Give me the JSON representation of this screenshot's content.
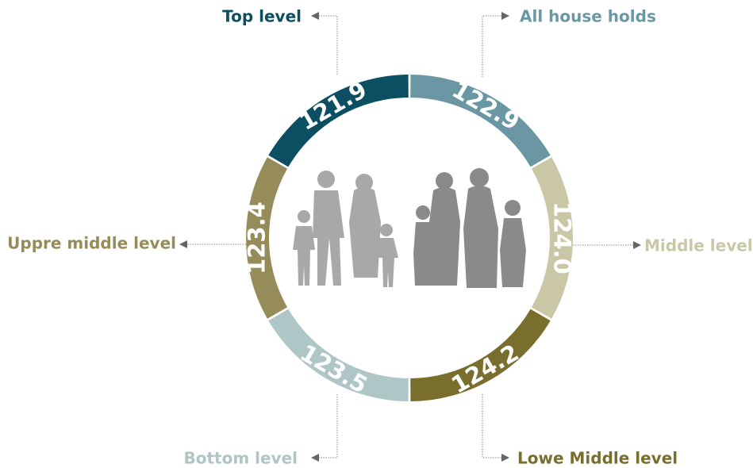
{
  "segments": [
    {
      "label": "All house holds",
      "value": "122.9",
      "color": "#6b97a5"
    },
    {
      "label": "Middle level",
      "value": "124.0",
      "color": "#c9c7a6"
    },
    {
      "label": "Lowe Middle level",
      "value": "124.2",
      "color": "#7a6e2e"
    },
    {
      "label": "Bottom level",
      "value": "123.5",
      "color": "#aec6c6"
    },
    {
      "label": "Uppre middle level",
      "value": "123.4",
      "color": "#958c5a"
    },
    {
      "label": "Top level",
      "value": "121.9",
      "color": "#0d4f62"
    }
  ]
}
